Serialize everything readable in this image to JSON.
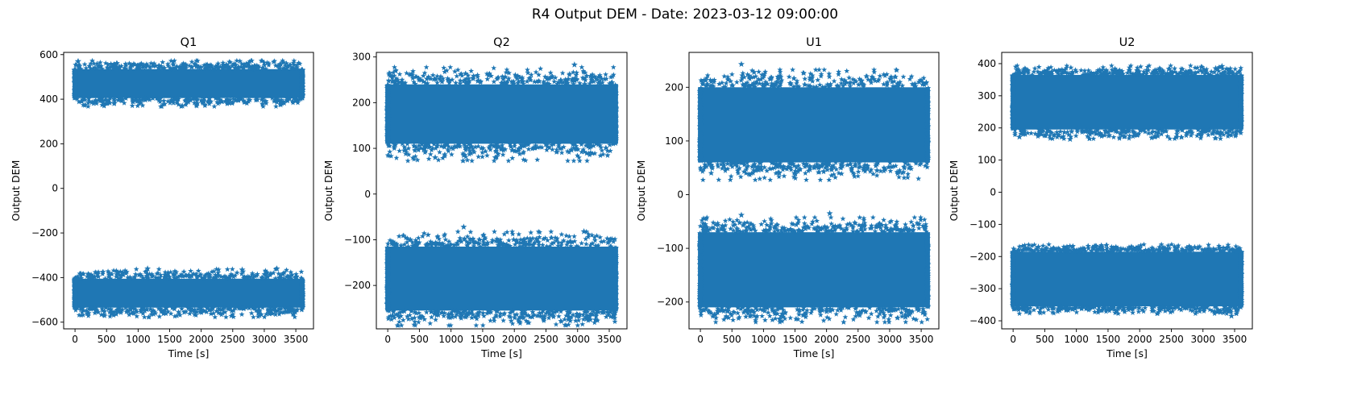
{
  "figure": {
    "suptitle": "R4 Output DEM - Date: 2023-03-12 09:00:00",
    "series_color": "#1f77b4",
    "marker": "star"
  },
  "chart_data": [
    {
      "type": "scatter",
      "title": "Q1",
      "xlabel": "Time [s]",
      "ylabel": "Output DEM",
      "xlim": [
        -180,
        3780
      ],
      "ylim": [
        -630,
        610
      ],
      "xticks": [
        0,
        500,
        1000,
        1500,
        2000,
        2500,
        3000,
        3500
      ],
      "yticks": [
        -600,
        -400,
        -200,
        0,
        200,
        400,
        600
      ],
      "x_range": [
        0,
        3600
      ],
      "grid": false,
      "bands": [
        {
          "center": 470,
          "half_width": 65,
          "min": 370,
          "max": 575
        },
        {
          "center": -470,
          "half_width": 65,
          "min": -575,
          "max": -360
        }
      ],
      "outliers": [
        [
          50,
          570
        ],
        [
          1150,
          -360
        ],
        [
          1700,
          370
        ],
        [
          2650,
          -365
        ],
        [
          3200,
          -360
        ],
        [
          3300,
          565
        ]
      ]
    },
    {
      "type": "scatter",
      "title": "Q2",
      "xlabel": "Time [s]",
      "ylabel": "Output DEM",
      "xlim": [
        -180,
        3780
      ],
      "ylim": [
        -295,
        310
      ],
      "xticks": [
        0,
        500,
        1000,
        1500,
        2000,
        2500,
        3000,
        3500
      ],
      "yticks": [
        -200,
        -100,
        0,
        100,
        200,
        300
      ],
      "x_range": [
        0,
        3600
      ],
      "grid": false,
      "bands": [
        {
          "center": 175,
          "half_width": 65,
          "min": 80,
          "max": 285
        },
        {
          "center": -185,
          "half_width": 70,
          "min": -275,
          "max": -70
        }
      ],
      "outliers": [
        [
          750,
          80
        ],
        [
          1200,
          85
        ],
        [
          1700,
          80
        ],
        [
          2950,
          283
        ],
        [
          1200,
          -72
        ],
        [
          2450,
          -268
        ],
        [
          3100,
          -82
        ],
        [
          3200,
          -275
        ]
      ]
    },
    {
      "type": "scatter",
      "title": "U1",
      "xlabel": "Time [s]",
      "ylabel": "Output DEM",
      "xlim": [
        -180,
        3780
      ],
      "ylim": [
        -250,
        265
      ],
      "xticks": [
        0,
        500,
        1000,
        1500,
        2000,
        2500,
        3000,
        3500
      ],
      "yticks": [
        -200,
        -100,
        0,
        100,
        200
      ],
      "x_range": [
        0,
        3600
      ],
      "grid": false,
      "bands": [
        {
          "center": 130,
          "half_width": 70,
          "min": 38,
          "max": 243
        },
        {
          "center": -140,
          "half_width": 70,
          "min": -230,
          "max": -35
        }
      ],
      "outliers": [
        [
          650,
          243
        ],
        [
          850,
          228
        ],
        [
          1250,
          40
        ],
        [
          2800,
          45
        ],
        [
          650,
          -38
        ],
        [
          2050,
          -35
        ],
        [
          800,
          -225
        ],
        [
          1300,
          -222
        ],
        [
          3250,
          -228
        ]
      ]
    },
    {
      "type": "scatter",
      "title": "U2",
      "xlabel": "Time [s]",
      "ylabel": "Output DEM",
      "xlim": [
        -180,
        3780
      ],
      "ylim": [
        -425,
        435
      ],
      "xticks": [
        0,
        500,
        1000,
        1500,
        2000,
        2500,
        3000,
        3500
      ],
      "yticks": [
        -400,
        -300,
        -200,
        -100,
        0,
        100,
        200,
        300,
        400
      ],
      "x_range": [
        0,
        3600
      ],
      "grid": false,
      "bands": [
        {
          "center": 280,
          "half_width": 85,
          "min": 165,
          "max": 392
        },
        {
          "center": -270,
          "half_width": 85,
          "min": -385,
          "max": -170
        }
      ],
      "outliers": [
        [
          100,
          172
        ],
        [
          900,
          165
        ],
        [
          3300,
          392
        ],
        [
          3200,
          385
        ],
        [
          400,
          -170
        ],
        [
          1300,
          -168
        ],
        [
          3450,
          -385
        ]
      ]
    }
  ]
}
